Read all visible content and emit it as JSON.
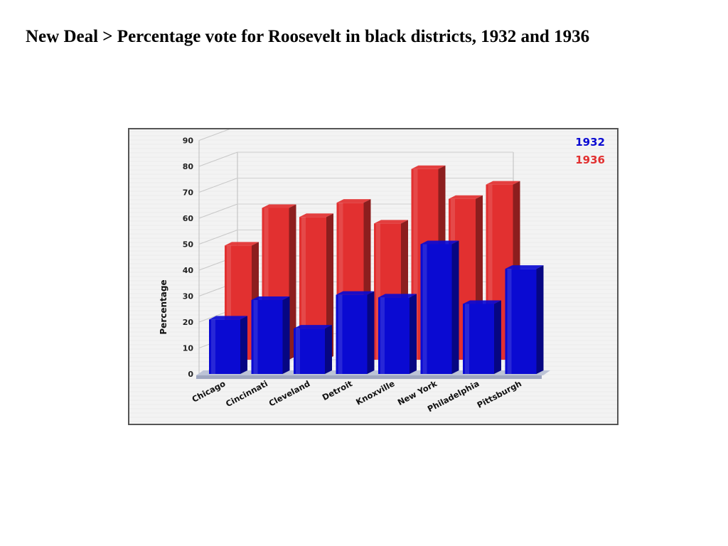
{
  "page": {
    "title": "New Deal  > Percentage vote for Roosevelt in black districts, 1932 and 1936"
  },
  "chart_data": {
    "type": "bar",
    "title": "",
    "xlabel": "",
    "ylabel": "Percentage",
    "ylim": [
      0,
      90
    ],
    "yticks": [
      "0",
      "10",
      "20",
      "30",
      "40",
      "50",
      "60",
      "70",
      "80",
      "90"
    ],
    "grid": true,
    "legend_position": "top-right",
    "categories": [
      "Chicago",
      "Cincinnati",
      "Cleveland",
      "Detroit",
      "Knoxville",
      "New York",
      "Philadelphia",
      "Pittsburgh"
    ],
    "series": [
      {
        "name": "1932",
        "color": "#0a0ad2",
        "values": [
          21,
          28.5,
          17.5,
          30.5,
          29.5,
          50,
          27,
          40.5
        ]
      },
      {
        "name": "1936",
        "color": "#e23030",
        "values": [
          44,
          58.5,
          55,
          60.5,
          52.5,
          73.5,
          62,
          67.5
        ]
      }
    ]
  }
}
